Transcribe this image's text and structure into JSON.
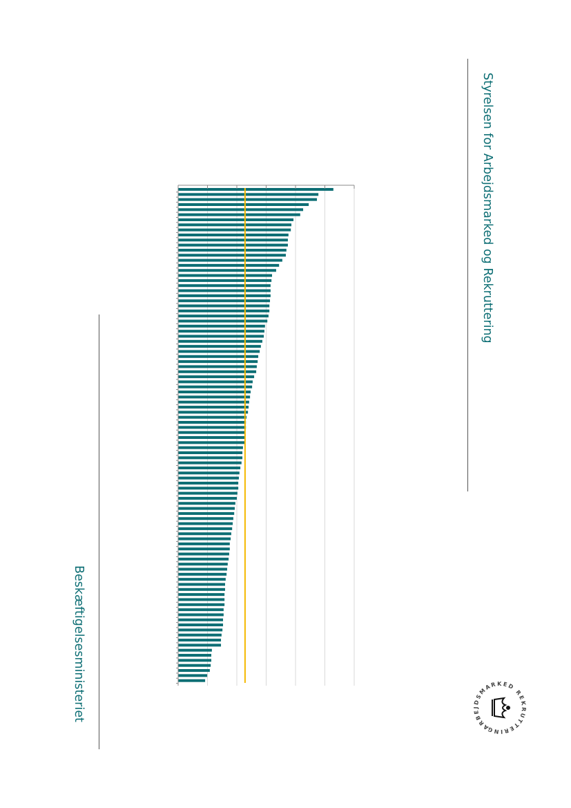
{
  "header": {
    "agency": "Styrelsen for Arbejdsmarked og Rekruttering"
  },
  "footer": {
    "ministry": "Beskæftigelsesministeriet"
  },
  "logo": {
    "text": "ARBEJDSMARKED REKRUTTERING"
  },
  "colors": {
    "bar": "#0d6e74",
    "average": "#f5b800",
    "grid": "#d9d9d9",
    "text": "#0d6e74"
  },
  "chart_data": {
    "type": "bar",
    "orientation": "horizontal",
    "title": "",
    "xlabel": "",
    "ylabel": "",
    "xlim": [
      0,
      6
    ],
    "grid": true,
    "average": 2.28,
    "values": [
      5.29,
      4.78,
      4.73,
      4.45,
      4.26,
      4.16,
      3.93,
      3.86,
      3.84,
      3.76,
      3.74,
      3.74,
      3.69,
      3.67,
      3.55,
      3.44,
      3.34,
      3.2,
      3.18,
      3.15,
      3.15,
      3.15,
      3.13,
      3.11,
      3.11,
      3.08,
      3.04,
      2.96,
      2.94,
      2.92,
      2.87,
      2.82,
      2.78,
      2.73,
      2.71,
      2.68,
      2.66,
      2.59,
      2.54,
      2.52,
      2.47,
      2.45,
      2.42,
      2.4,
      2.38,
      2.33,
      2.31,
      2.31,
      2.28,
      2.28,
      2.26,
      2.21,
      2.19,
      2.19,
      2.16,
      2.12,
      2.09,
      2.07,
      2.05,
      2.05,
      2.02,
      2.0,
      1.95,
      1.93,
      1.91,
      1.88,
      1.86,
      1.84,
      1.81,
      1.79,
      1.76,
      1.76,
      1.74,
      1.72,
      1.69,
      1.67,
      1.65,
      1.62,
      1.6,
      1.6,
      1.58,
      1.58,
      1.58,
      1.55,
      1.55,
      1.53,
      1.53,
      1.51,
      1.48,
      1.46,
      1.46,
      1.15,
      1.13,
      1.13,
      1.11,
      1.08,
      0.99,
      0.92
    ]
  }
}
